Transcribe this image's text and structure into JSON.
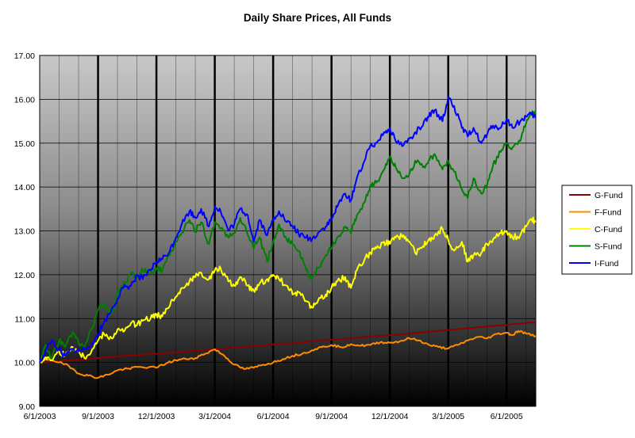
{
  "chart_data": {
    "type": "line",
    "title": "Daily Share Prices, All Funds",
    "xlabel": "",
    "ylabel": "",
    "ylim": [
      9.0,
      17.0
    ],
    "y_ticks": [
      "9.00",
      "10.00",
      "11.00",
      "12.00",
      "13.00",
      "14.00",
      "15.00",
      "16.00",
      "17.00"
    ],
    "x_ticks": [
      "6/1/2003",
      "9/1/2003",
      "12/1/2003",
      "3/1/2004",
      "6/1/2004",
      "9/1/2004",
      "12/1/2004",
      "3/1/2005",
      "6/1/2005"
    ],
    "x_range_months": [
      0,
      25.5
    ],
    "grid": true,
    "legend_position": "right",
    "background": "vertical gradient light gray to black",
    "series": [
      {
        "name": "G-Fund",
        "color": "#8B0000",
        "points": [
          [
            0,
            10.0
          ],
          [
            1,
            10.03
          ],
          [
            2,
            10.06
          ],
          [
            3,
            10.1
          ],
          [
            4,
            10.14
          ],
          [
            5,
            10.17
          ],
          [
            6,
            10.2
          ],
          [
            7,
            10.23
          ],
          [
            8,
            10.27
          ],
          [
            9,
            10.3
          ],
          [
            10,
            10.34
          ],
          [
            11,
            10.37
          ],
          [
            12,
            10.41
          ],
          [
            13,
            10.44
          ],
          [
            14,
            10.48
          ],
          [
            15,
            10.52
          ],
          [
            16,
            10.55
          ],
          [
            17,
            10.59
          ],
          [
            18,
            10.62
          ],
          [
            19,
            10.66
          ],
          [
            20,
            10.7
          ],
          [
            21,
            10.74
          ],
          [
            22,
            10.78
          ],
          [
            23,
            10.82
          ],
          [
            24,
            10.86
          ],
          [
            25,
            10.9
          ],
          [
            25.5,
            10.92
          ]
        ]
      },
      {
        "name": "F-Fund",
        "color": "#FF8C00",
        "points": [
          [
            0,
            10.0
          ],
          [
            0.5,
            10.08
          ],
          [
            1,
            10.0
          ],
          [
            1.5,
            9.92
          ],
          [
            2,
            9.75
          ],
          [
            2.5,
            9.7
          ],
          [
            3,
            9.65
          ],
          [
            3.5,
            9.72
          ],
          [
            4,
            9.82
          ],
          [
            4.5,
            9.86
          ],
          [
            5,
            9.9
          ],
          [
            6,
            9.88
          ],
          [
            6.5,
            9.98
          ],
          [
            7,
            10.05
          ],
          [
            7.5,
            10.08
          ],
          [
            8,
            10.1
          ],
          [
            8.5,
            10.2
          ],
          [
            9,
            10.3
          ],
          [
            9.5,
            10.15
          ],
          [
            10,
            9.95
          ],
          [
            10.5,
            9.85
          ],
          [
            11,
            9.88
          ],
          [
            11.5,
            9.95
          ],
          [
            12,
            10.0
          ],
          [
            12.5,
            10.08
          ],
          [
            13,
            10.15
          ],
          [
            13.5,
            10.2
          ],
          [
            14,
            10.28
          ],
          [
            14.5,
            10.35
          ],
          [
            15,
            10.4
          ],
          [
            15.5,
            10.35
          ],
          [
            16,
            10.42
          ],
          [
            16.5,
            10.38
          ],
          [
            17,
            10.4
          ],
          [
            17.5,
            10.46
          ],
          [
            18,
            10.45
          ],
          [
            18.5,
            10.48
          ],
          [
            19,
            10.55
          ],
          [
            19.5,
            10.5
          ],
          [
            20,
            10.4
          ],
          [
            20.5,
            10.35
          ],
          [
            21,
            10.32
          ],
          [
            21.5,
            10.4
          ],
          [
            22,
            10.5
          ],
          [
            22.5,
            10.58
          ],
          [
            23,
            10.55
          ],
          [
            23.5,
            10.65
          ],
          [
            24,
            10.68
          ],
          [
            24.3,
            10.62
          ],
          [
            24.6,
            10.72
          ],
          [
            25,
            10.66
          ],
          [
            25.5,
            10.6
          ]
        ]
      },
      {
        "name": "C-Fund",
        "color": "#FFFF00",
        "points": [
          [
            0,
            10.0
          ],
          [
            0.3,
            10.12
          ],
          [
            0.6,
            10.05
          ],
          [
            1,
            10.25
          ],
          [
            1.3,
            10.15
          ],
          [
            1.7,
            10.35
          ],
          [
            2,
            10.25
          ],
          [
            2.3,
            10.1
          ],
          [
            2.7,
            10.3
          ],
          [
            3,
            10.5
          ],
          [
            3.3,
            10.65
          ],
          [
            3.7,
            10.55
          ],
          [
            4,
            10.75
          ],
          [
            4.3,
            10.7
          ],
          [
            4.7,
            10.9
          ],
          [
            5,
            10.85
          ],
          [
            5.3,
            10.95
          ],
          [
            5.7,
            11.0
          ],
          [
            6,
            11.1
          ],
          [
            6.3,
            11.05
          ],
          [
            6.7,
            11.3
          ],
          [
            7,
            11.5
          ],
          [
            7.3,
            11.7
          ],
          [
            7.7,
            11.85
          ],
          [
            8,
            11.95
          ],
          [
            8.3,
            12.05
          ],
          [
            8.7,
            11.9
          ],
          [
            9,
            12.1
          ],
          [
            9.3,
            12.15
          ],
          [
            9.7,
            11.85
          ],
          [
            10,
            11.75
          ],
          [
            10.3,
            11.95
          ],
          [
            10.7,
            11.75
          ],
          [
            11,
            11.65
          ],
          [
            11.3,
            11.8
          ],
          [
            11.7,
            11.9
          ],
          [
            12,
            12.0
          ],
          [
            12.3,
            11.9
          ],
          [
            12.7,
            11.75
          ],
          [
            13,
            11.55
          ],
          [
            13.3,
            11.6
          ],
          [
            13.7,
            11.4
          ],
          [
            14,
            11.25
          ],
          [
            14.3,
            11.4
          ],
          [
            14.7,
            11.55
          ],
          [
            15,
            11.7
          ],
          [
            15.3,
            11.85
          ],
          [
            15.7,
            11.95
          ],
          [
            16,
            11.7
          ],
          [
            16.3,
            12.1
          ],
          [
            16.7,
            12.35
          ],
          [
            17,
            12.5
          ],
          [
            17.3,
            12.6
          ],
          [
            17.7,
            12.75
          ],
          [
            18,
            12.7
          ],
          [
            18.3,
            12.85
          ],
          [
            18.7,
            12.9
          ],
          [
            19,
            12.75
          ],
          [
            19.3,
            12.5
          ],
          [
            19.7,
            12.65
          ],
          [
            20,
            12.8
          ],
          [
            20.3,
            12.9
          ],
          [
            20.7,
            13.05
          ],
          [
            21,
            12.8
          ],
          [
            21.3,
            12.55
          ],
          [
            21.7,
            12.75
          ],
          [
            22,
            12.3
          ],
          [
            22.3,
            12.45
          ],
          [
            22.7,
            12.5
          ],
          [
            23,
            12.7
          ],
          [
            23.3,
            12.8
          ],
          [
            23.7,
            12.95
          ],
          [
            24,
            13.0
          ],
          [
            24.3,
            12.85
          ],
          [
            24.7,
            12.9
          ],
          [
            25,
            13.1
          ],
          [
            25.3,
            13.25
          ],
          [
            25.5,
            13.22
          ]
        ]
      },
      {
        "name": "S-Fund",
        "color": "#008000",
        "points": [
          [
            0,
            10.0
          ],
          [
            0.3,
            10.4
          ],
          [
            0.6,
            10.1
          ],
          [
            1,
            10.5
          ],
          [
            1.3,
            10.35
          ],
          [
            1.7,
            10.7
          ],
          [
            2,
            10.45
          ],
          [
            2.3,
            10.35
          ],
          [
            2.7,
            10.8
          ],
          [
            3,
            11.2
          ],
          [
            3.3,
            11.35
          ],
          [
            3.7,
            11.1
          ],
          [
            4,
            11.6
          ],
          [
            4.3,
            11.75
          ],
          [
            4.7,
            12.05
          ],
          [
            5,
            11.95
          ],
          [
            5.3,
            12.1
          ],
          [
            5.7,
            12.05
          ],
          [
            6,
            12.15
          ],
          [
            6.3,
            12.1
          ],
          [
            6.7,
            12.45
          ],
          [
            7,
            12.75
          ],
          [
            7.3,
            12.95
          ],
          [
            7.7,
            13.25
          ],
          [
            8,
            13.0
          ],
          [
            8.3,
            13.2
          ],
          [
            8.7,
            12.7
          ],
          [
            9,
            13.2
          ],
          [
            9.3,
            13.05
          ],
          [
            9.7,
            12.85
          ],
          [
            10,
            12.95
          ],
          [
            10.3,
            13.3
          ],
          [
            10.7,
            12.9
          ],
          [
            11,
            12.6
          ],
          [
            11.3,
            12.85
          ],
          [
            11.7,
            12.3
          ],
          [
            12,
            12.75
          ],
          [
            12.3,
            13.15
          ],
          [
            12.7,
            12.8
          ],
          [
            13,
            12.7
          ],
          [
            13.3,
            12.55
          ],
          [
            13.7,
            12.1
          ],
          [
            14,
            11.9
          ],
          [
            14.3,
            12.15
          ],
          [
            14.7,
            12.45
          ],
          [
            15,
            12.6
          ],
          [
            15.3,
            12.85
          ],
          [
            15.7,
            13.1
          ],
          [
            16,
            12.95
          ],
          [
            16.3,
            13.35
          ],
          [
            16.7,
            13.65
          ],
          [
            17,
            14.05
          ],
          [
            17.3,
            14.1
          ],
          [
            17.7,
            14.4
          ],
          [
            18,
            14.7
          ],
          [
            18.3,
            14.45
          ],
          [
            18.7,
            14.2
          ],
          [
            19,
            14.3
          ],
          [
            19.3,
            14.6
          ],
          [
            19.7,
            14.45
          ],
          [
            20,
            14.6
          ],
          [
            20.3,
            14.75
          ],
          [
            20.7,
            14.4
          ],
          [
            21,
            14.6
          ],
          [
            21.3,
            14.35
          ],
          [
            21.7,
            13.95
          ],
          [
            22,
            13.75
          ],
          [
            22.3,
            14.2
          ],
          [
            22.7,
            13.85
          ],
          [
            23,
            14.05
          ],
          [
            23.3,
            14.5
          ],
          [
            23.7,
            14.8
          ],
          [
            24,
            15.0
          ],
          [
            24.3,
            14.9
          ],
          [
            24.7,
            15.05
          ],
          [
            25,
            15.45
          ],
          [
            25.3,
            15.7
          ],
          [
            25.5,
            15.65
          ]
        ]
      },
      {
        "name": "I-Fund",
        "color": "#0000FF",
        "points": [
          [
            0,
            10.0
          ],
          [
            0.3,
            10.25
          ],
          [
            0.6,
            10.5
          ],
          [
            1,
            10.3
          ],
          [
            1.3,
            10.15
          ],
          [
            1.7,
            10.3
          ],
          [
            2,
            10.25
          ],
          [
            2.3,
            10.3
          ],
          [
            2.7,
            10.45
          ],
          [
            3,
            10.65
          ],
          [
            3.3,
            10.9
          ],
          [
            3.7,
            11.2
          ],
          [
            4,
            11.45
          ],
          [
            4.3,
            11.7
          ],
          [
            4.7,
            11.75
          ],
          [
            5,
            12.0
          ],
          [
            5.3,
            11.9
          ],
          [
            5.7,
            12.1
          ],
          [
            6,
            12.3
          ],
          [
            6.3,
            12.35
          ],
          [
            6.7,
            12.55
          ],
          [
            7,
            12.85
          ],
          [
            7.3,
            13.15
          ],
          [
            7.7,
            13.45
          ],
          [
            8,
            13.3
          ],
          [
            8.3,
            13.5
          ],
          [
            8.7,
            13.1
          ],
          [
            9,
            13.55
          ],
          [
            9.3,
            13.45
          ],
          [
            9.7,
            13.0
          ],
          [
            10,
            13.15
          ],
          [
            10.3,
            13.5
          ],
          [
            10.7,
            13.35
          ],
          [
            11,
            12.75
          ],
          [
            11.3,
            13.25
          ],
          [
            11.7,
            12.9
          ],
          [
            12,
            13.25
          ],
          [
            12.3,
            13.45
          ],
          [
            12.7,
            13.2
          ],
          [
            13,
            13.1
          ],
          [
            13.3,
            12.95
          ],
          [
            13.7,
            12.85
          ],
          [
            14,
            12.8
          ],
          [
            14.3,
            12.95
          ],
          [
            14.7,
            13.1
          ],
          [
            15,
            13.25
          ],
          [
            15.3,
            13.55
          ],
          [
            15.7,
            13.85
          ],
          [
            16,
            13.7
          ],
          [
            16.3,
            14.2
          ],
          [
            16.7,
            14.6
          ],
          [
            17,
            14.95
          ],
          [
            17.3,
            15.0
          ],
          [
            17.7,
            15.25
          ],
          [
            18,
            15.35
          ],
          [
            18.3,
            15.05
          ],
          [
            18.7,
            14.95
          ],
          [
            19,
            15.1
          ],
          [
            19.3,
            15.25
          ],
          [
            19.7,
            15.4
          ],
          [
            20,
            15.6
          ],
          [
            20.3,
            15.75
          ],
          [
            20.7,
            15.5
          ],
          [
            21,
            16.05
          ],
          [
            21.3,
            15.85
          ],
          [
            21.7,
            15.35
          ],
          [
            22,
            15.15
          ],
          [
            22.3,
            15.35
          ],
          [
            22.7,
            15.0
          ],
          [
            23,
            15.2
          ],
          [
            23.3,
            15.4
          ],
          [
            23.7,
            15.35
          ],
          [
            24,
            15.55
          ],
          [
            24.3,
            15.35
          ],
          [
            24.7,
            15.5
          ],
          [
            25,
            15.6
          ],
          [
            25.3,
            15.65
          ],
          [
            25.5,
            15.58
          ]
        ]
      }
    ]
  }
}
